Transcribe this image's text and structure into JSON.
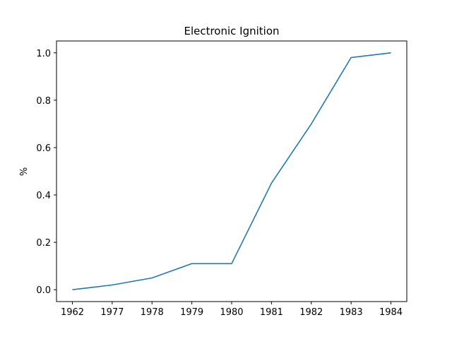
{
  "chart_data": {
    "type": "line",
    "title": "Electronic Ignition",
    "xlabel": "",
    "ylabel": "%",
    "categories": [
      "1962",
      "1977",
      "1978",
      "1979",
      "1980",
      "1981",
      "1982",
      "1983",
      "1984"
    ],
    "series": [
      {
        "values": [
          0.0,
          0.02,
          0.05,
          0.11,
          0.11,
          0.45,
          0.7,
          0.98,
          1.0
        ],
        "color": "#1f77b4"
      }
    ],
    "yticks": [
      0.0,
      0.2,
      0.4,
      0.6,
      0.8,
      1.0
    ],
    "ytick_labels": [
      "0.0",
      "0.2",
      "0.4",
      "0.6",
      "0.8",
      "1.0"
    ],
    "ylim": [
      -0.05,
      1.05
    ],
    "grid": false,
    "legend": "none"
  }
}
